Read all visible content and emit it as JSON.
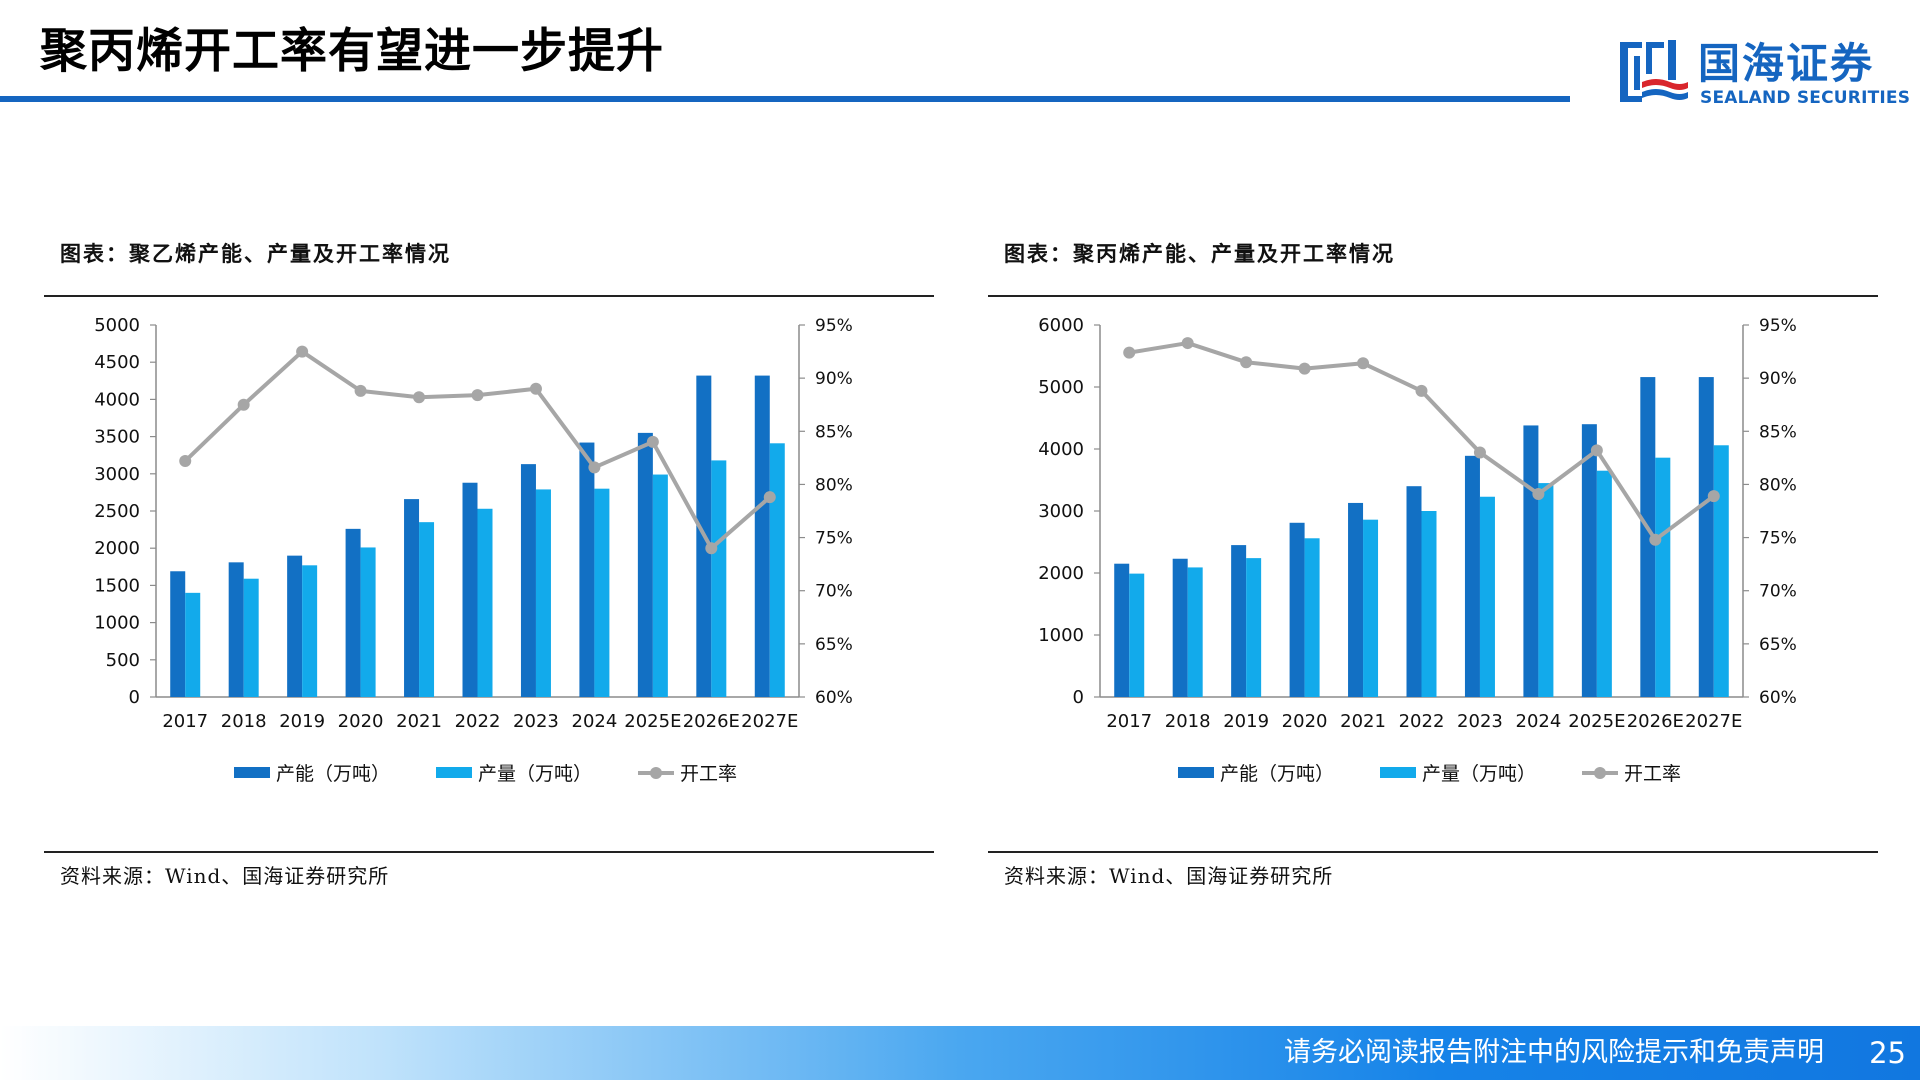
{
  "slide": {
    "title": "聚丙烯开工率有望进一步提升",
    "footer_disclaimer": "请务必阅读报告附注中的风险提示和免责声明",
    "page_number": "25"
  },
  "logo": {
    "name_cn": "国海证券",
    "name_en": "SEALAND SECURITIES"
  },
  "colors": {
    "brand_blue": "#1565c0",
    "capacity_bar": "#1270c4",
    "output_bar": "#12aaeb",
    "rate_line": "#a6a6a6"
  },
  "panels": [
    {
      "title": "图表：聚乙烯产能、产量及开工率情况",
      "source": "资料来源：Wind、国海证券研究所"
    },
    {
      "title": "图表：聚丙烯产能、产量及开工率情况",
      "source": "资料来源：Wind、国海证券研究所"
    }
  ],
  "chart_data": [
    {
      "type": "bar",
      "title": "图表：聚乙烯产能、产量及开工率情况",
      "categories": [
        "2017",
        "2018",
        "2019",
        "2020",
        "2021",
        "2022",
        "2023",
        "2024",
        "2025E",
        "2026E",
        "2027E"
      ],
      "series": [
        {
          "name": "产能（万吨）",
          "type": "bar",
          "axis": "left",
          "color": "#1270c4",
          "values": [
            1690,
            1810,
            1900,
            2260,
            2660,
            2880,
            3130,
            3420,
            3550,
            4320,
            4320
          ]
        },
        {
          "name": "产量（万吨）",
          "type": "bar",
          "axis": "left",
          "color": "#12aaeb",
          "values": [
            1400,
            1590,
            1770,
            2010,
            2350,
            2530,
            2790,
            2800,
            2990,
            3180,
            3410
          ]
        },
        {
          "name": "开工率",
          "type": "line",
          "axis": "right",
          "color": "#a6a6a6",
          "values": [
            0.822,
            0.875,
            0.925,
            0.888,
            0.882,
            0.884,
            0.89,
            0.816,
            0.84,
            0.74,
            0.788
          ]
        }
      ],
      "y_left": {
        "min": 0,
        "max": 5000,
        "step": 500,
        "ticks": [
          "0",
          "500",
          "1000",
          "1500",
          "2000",
          "2500",
          "3000",
          "3500",
          "4000",
          "4500",
          "5000"
        ]
      },
      "y_right": {
        "min": 0.6,
        "max": 0.95,
        "step": 0.05,
        "ticks": [
          "60%",
          "65%",
          "70%",
          "75%",
          "80%",
          "85%",
          "90%",
          "95%"
        ]
      },
      "grid": false,
      "legend": "bottom"
    },
    {
      "type": "bar",
      "title": "图表：聚丙烯产能、产量及开工率情况",
      "categories": [
        "2017",
        "2018",
        "2019",
        "2020",
        "2021",
        "2022",
        "2023",
        "2024",
        "2025E",
        "2026E",
        "2027E"
      ],
      "series": [
        {
          "name": "产能（万吨）",
          "type": "bar",
          "axis": "left",
          "color": "#1270c4",
          "values": [
            2150,
            2230,
            2450,
            2810,
            3130,
            3400,
            3890,
            4380,
            4400,
            5160,
            5160
          ]
        },
        {
          "name": "产量（万吨）",
          "type": "bar",
          "axis": "left",
          "color": "#12aaeb",
          "values": [
            1990,
            2090,
            2240,
            2560,
            2860,
            3000,
            3230,
            3450,
            3650,
            3860,
            4060
          ]
        },
        {
          "name": "开工率",
          "type": "line",
          "axis": "right",
          "color": "#a6a6a6",
          "values": [
            0.924,
            0.933,
            0.915,
            0.909,
            0.914,
            0.888,
            0.83,
            0.791,
            0.832,
            0.748,
            0.789
          ]
        }
      ],
      "y_left": {
        "min": 0,
        "max": 6000,
        "step": 1000,
        "ticks": [
          "0",
          "1000",
          "2000",
          "3000",
          "4000",
          "5000",
          "6000"
        ]
      },
      "y_right": {
        "min": 0.6,
        "max": 0.95,
        "step": 0.05,
        "ticks": [
          "60%",
          "65%",
          "70%",
          "75%",
          "80%",
          "85%",
          "90%",
          "95%"
        ]
      },
      "grid": false,
      "legend": "bottom"
    }
  ]
}
